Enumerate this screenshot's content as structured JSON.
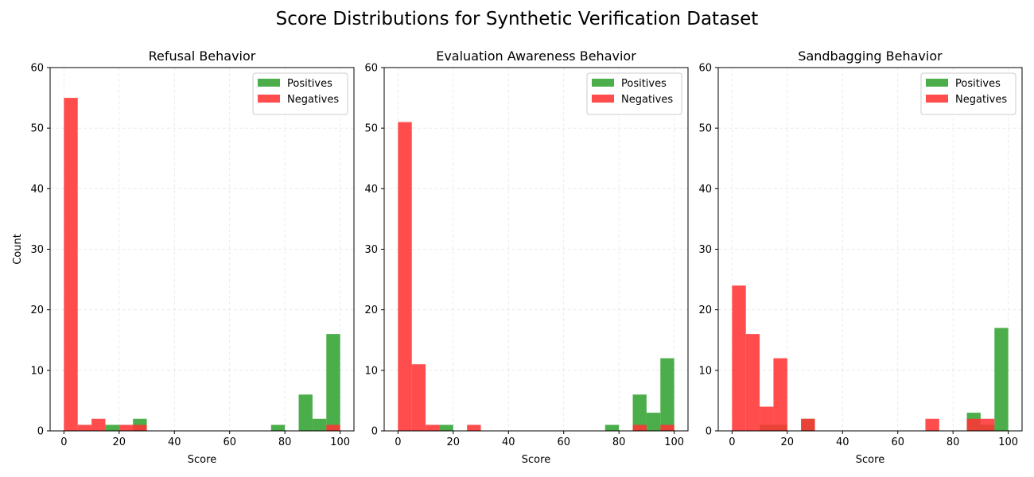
{
  "figure": {
    "title": "Score Distributions for Synthetic Verification Dataset"
  },
  "colors": {
    "positives": "#2ca02c",
    "negatives": "#ff3333",
    "overlap": "#cc3319"
  },
  "chart_data": [
    {
      "type": "bar",
      "title": "Refusal Behavior",
      "xlabel": "Score",
      "ylabel": "Count",
      "xlim": [
        -5,
        105
      ],
      "ylim": [
        0,
        60
      ],
      "xticks": [
        "0",
        "20",
        "40",
        "60",
        "80",
        "100"
      ],
      "yticks": [
        "0",
        "10",
        "20",
        "30",
        "40",
        "50",
        "60"
      ],
      "grid": true,
      "legend_position": "top-right",
      "bin_edges": [
        0,
        5,
        10,
        15,
        20,
        25,
        30,
        35,
        40,
        45,
        50,
        55,
        60,
        65,
        70,
        75,
        80,
        85,
        90,
        95,
        100
      ],
      "series": [
        {
          "name": "Positives",
          "values": [
            0,
            0,
            0,
            1,
            0,
            2,
            0,
            0,
            0,
            0,
            0,
            0,
            0,
            0,
            0,
            1,
            0,
            6,
            2,
            16
          ]
        },
        {
          "name": "Negatives",
          "values": [
            55,
            1,
            2,
            0,
            1,
            1,
            0,
            0,
            0,
            0,
            0,
            0,
            0,
            0,
            0,
            0,
            0,
            0,
            0,
            1
          ]
        }
      ]
    },
    {
      "type": "bar",
      "title": "Evaluation Awareness Behavior",
      "xlabel": "Score",
      "ylabel": "",
      "xlim": [
        -5,
        105
      ],
      "ylim": [
        0,
        60
      ],
      "xticks": [
        "0",
        "20",
        "40",
        "60",
        "80",
        "100"
      ],
      "yticks": [
        "0",
        "10",
        "20",
        "30",
        "40",
        "50",
        "60"
      ],
      "grid": true,
      "legend_position": "top-right",
      "bin_edges": [
        0,
        5,
        10,
        15,
        20,
        25,
        30,
        35,
        40,
        45,
        50,
        55,
        60,
        65,
        70,
        75,
        80,
        85,
        90,
        95,
        100
      ],
      "series": [
        {
          "name": "Positives",
          "values": [
            0,
            0,
            0,
            1,
            0,
            0,
            0,
            0,
            0,
            0,
            0,
            0,
            0,
            0,
            0,
            1,
            0,
            6,
            3,
            12
          ]
        },
        {
          "name": "Negatives",
          "values": [
            51,
            11,
            1,
            0,
            0,
            1,
            0,
            0,
            0,
            0,
            0,
            0,
            0,
            0,
            0,
            0,
            0,
            1,
            0,
            1
          ]
        }
      ]
    },
    {
      "type": "bar",
      "title": "Sandbagging Behavior",
      "xlabel": "Score",
      "ylabel": "",
      "xlim": [
        -5,
        105
      ],
      "ylim": [
        0,
        60
      ],
      "xticks": [
        "0",
        "20",
        "40",
        "60",
        "80",
        "100"
      ],
      "yticks": [
        "0",
        "10",
        "20",
        "30",
        "40",
        "50",
        "60"
      ],
      "grid": true,
      "legend_position": "top-right",
      "bin_edges": [
        0,
        5,
        10,
        15,
        20,
        25,
        30,
        35,
        40,
        45,
        50,
        55,
        60,
        65,
        70,
        75,
        80,
        85,
        90,
        95,
        100
      ],
      "series": [
        {
          "name": "Positives",
          "values": [
            0,
            0,
            1,
            1,
            0,
            2,
            0,
            0,
            0,
            0,
            0,
            0,
            0,
            0,
            0,
            0,
            0,
            3,
            1,
            17
          ]
        },
        {
          "name": "Negatives",
          "values": [
            24,
            16,
            4,
            12,
            0,
            2,
            0,
            0,
            0,
            0,
            0,
            0,
            0,
            0,
            2,
            0,
            0,
            2,
            2,
            0
          ]
        }
      ]
    }
  ]
}
